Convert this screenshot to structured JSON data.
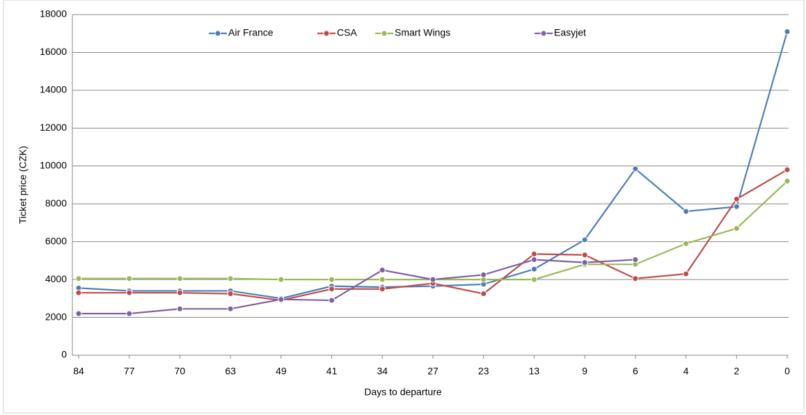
{
  "chart_data": {
    "type": "line",
    "xlabel": "Days to departure",
    "ylabel": "Ticket price (CZK)",
    "categories": [
      "84",
      "77",
      "70",
      "63",
      "49",
      "41",
      "34",
      "27",
      "23",
      "13",
      "9",
      "6",
      "4",
      "2",
      "0"
    ],
    "series": [
      {
        "name": "Air France",
        "color": "#4a7ebb",
        "values": [
          3550,
          3400,
          3400,
          3400,
          3000,
          3650,
          3600,
          3650,
          3750,
          4550,
          6100,
          9850,
          7600,
          7850,
          17100
        ]
      },
      {
        "name": "CSA",
        "color": "#be4b48",
        "values": [
          3300,
          3300,
          3300,
          3250,
          2900,
          3500,
          3500,
          3800,
          3250,
          5350,
          5300,
          4050,
          4300,
          8250,
          9800
        ]
      },
      {
        "name": "Smart Wings",
        "color": "#98b954",
        "values": [
          4050,
          4050,
          4050,
          4050,
          4000,
          4000,
          4000,
          4000,
          4000,
          4000,
          4800,
          4800,
          5900,
          6700,
          9200
        ]
      },
      {
        "name": "Easyjet",
        "color": "#7d60a0",
        "values": [
          2200,
          2200,
          2450,
          2450,
          2950,
          2900,
          4500,
          4000,
          4250,
          5050,
          4900,
          5050,
          null,
          null,
          null
        ]
      }
    ],
    "ylim": [
      0,
      18000
    ],
    "yticks": [
      0,
      2000,
      4000,
      6000,
      8000,
      10000,
      12000,
      14000,
      16000,
      18000
    ],
    "grid": true,
    "legend": "top"
  }
}
